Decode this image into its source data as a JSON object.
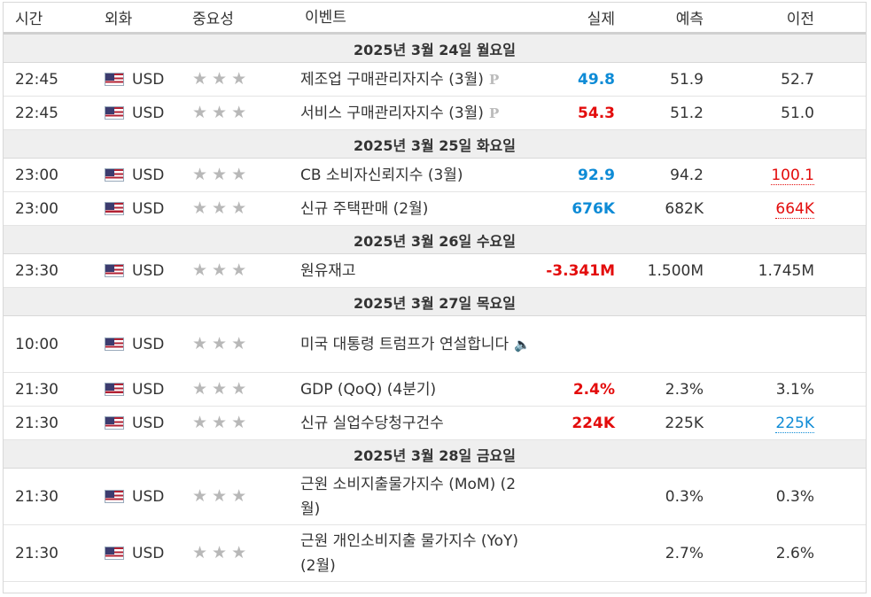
{
  "header": {
    "time": "시간",
    "currency": "외화",
    "importance": "중요성",
    "event": "이벤트",
    "actual": "실제",
    "forecast": "예측",
    "previous": "이전"
  },
  "colors": {
    "better": "#0e8bd6",
    "worse": "#e30c0c",
    "day_bg": "#efefef"
  },
  "days": [
    {
      "label": "2025년 3월 24일 월요일",
      "events": [
        {
          "time": "22:45",
          "currency": "USD",
          "stars": 3,
          "name": "제조업 구매관리자지수 (3월)",
          "badge": "P",
          "actual": "49.8",
          "actual_state": "blue",
          "forecast": "51.9",
          "previous": "52.7",
          "previous_state": ""
        },
        {
          "time": "22:45",
          "currency": "USD",
          "stars": 3,
          "name": "서비스 구매관리자지수 (3월)",
          "badge": "P",
          "actual": "54.3",
          "actual_state": "red",
          "forecast": "51.2",
          "previous": "51.0",
          "previous_state": ""
        }
      ]
    },
    {
      "label": "2025년 3월 25일 화요일",
      "events": [
        {
          "time": "23:00",
          "currency": "USD",
          "stars": 3,
          "name": "CB 소비자신뢰지수 (3월)",
          "badge": "",
          "actual": "92.9",
          "actual_state": "blue",
          "forecast": "94.2",
          "previous": "100.1",
          "previous_state": "red"
        },
        {
          "time": "23:00",
          "currency": "USD",
          "stars": 3,
          "name": "신규 주택판매 (2월)",
          "badge": "",
          "actual": "676K",
          "actual_state": "blue",
          "forecast": "682K",
          "previous": "664K",
          "previous_state": "red"
        }
      ]
    },
    {
      "label": "2025년 3월 26일 수요일",
      "events": [
        {
          "time": "23:30",
          "currency": "USD",
          "stars": 3,
          "name": "원유재고",
          "badge": "",
          "actual": "-3.341M",
          "actual_state": "red",
          "forecast": "1.500M",
          "previous": "1.745M",
          "previous_state": ""
        }
      ]
    },
    {
      "label": "2025년 3월 27일 목요일",
      "events": [
        {
          "time": "10:00",
          "currency": "USD",
          "stars": 3,
          "name": "미국 대통령 트럼프가 연설합니다",
          "badge": "speaker",
          "actual": "",
          "actual_state": "",
          "forecast": "",
          "previous": "",
          "previous_state": ""
        },
        {
          "time": "21:30",
          "currency": "USD",
          "stars": 3,
          "name": "GDP (QoQ) (4분기)",
          "badge": "",
          "actual": "2.4%",
          "actual_state": "red",
          "forecast": "2.3%",
          "previous": "3.1%",
          "previous_state": ""
        },
        {
          "time": "21:30",
          "currency": "USD",
          "stars": 3,
          "name": "신규 실업수당청구건수",
          "badge": "",
          "actual": "224K",
          "actual_state": "red",
          "forecast": "225K",
          "previous": "225K",
          "previous_state": "blue"
        }
      ]
    },
    {
      "label": "2025년 3월 28일 금요일",
      "events": [
        {
          "time": "21:30",
          "currency": "USD",
          "stars": 3,
          "name": "근원 소비지출물가지수 (MoM) (2월)",
          "badge": "",
          "actual": "",
          "actual_state": "",
          "forecast": "0.3%",
          "previous": "0.3%",
          "previous_state": ""
        },
        {
          "time": "21:30",
          "currency": "USD",
          "stars": 3,
          "name": "근원 개인소비지출 물가지수 (YoY) (2월)",
          "badge": "",
          "actual": "",
          "actual_state": "",
          "forecast": "2.7%",
          "previous": "2.6%",
          "previous_state": ""
        }
      ]
    }
  ]
}
